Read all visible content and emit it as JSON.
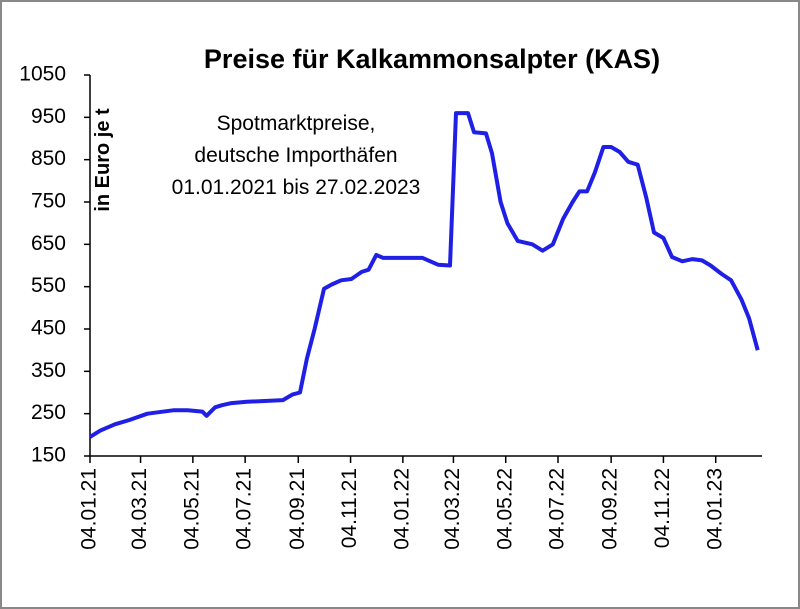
{
  "chart_data": {
    "type": "line",
    "title": "Preise für Kalkammonsalpter (KAS)",
    "subtitle": [
      "Spotmarktpreise,",
      "deutsche Importhäfen",
      "01.01.2021 bis 27.02.2023"
    ],
    "y_label": "in Euro je t",
    "grid": false,
    "xlim": [
      "2021-01-04",
      "2023-02-27"
    ],
    "xticks": [
      {
        "value": "2021-01-04",
        "label": "04.01.21"
      },
      {
        "value": "2021-03-04",
        "label": "04.03.21"
      },
      {
        "value": "2021-05-04",
        "label": "04.05.21"
      },
      {
        "value": "2021-07-04",
        "label": "04.07.21"
      },
      {
        "value": "2021-09-04",
        "label": "04.09.21"
      },
      {
        "value": "2021-11-04",
        "label": "04.11.21"
      },
      {
        "value": "2022-01-04",
        "label": "04.01.22"
      },
      {
        "value": "2022-03-04",
        "label": "04.03.22"
      },
      {
        "value": "2022-05-04",
        "label": "04.05.22"
      },
      {
        "value": "2022-07-04",
        "label": "04.07.22"
      },
      {
        "value": "2022-09-04",
        "label": "04.09.22"
      },
      {
        "value": "2022-11-04",
        "label": "04.11.22"
      },
      {
        "value": "2023-01-04",
        "label": "04.01.23"
      }
    ],
    "ylim": [
      150,
      1050
    ],
    "yticks": [
      150,
      250,
      350,
      450,
      550,
      650,
      750,
      850,
      950,
      1050
    ],
    "x": [
      "2021-01-04",
      "2021-01-16",
      "2021-02-02",
      "2021-02-19",
      "2021-03-12",
      "2021-04-11",
      "2021-04-28",
      "2021-05-15",
      "2021-05-20",
      "2021-05-30",
      "2021-06-07",
      "2021-06-18",
      "2021-07-06",
      "2021-08-17",
      "2021-08-28",
      "2021-09-06",
      "2021-09-14",
      "2021-09-23",
      "2021-10-04",
      "2021-10-13",
      "2021-10-24",
      "2021-11-05",
      "2021-11-17",
      "2021-11-25",
      "2021-12-04",
      "2021-12-12",
      "2022-01-27",
      "2022-02-14",
      "2022-02-28",
      "2022-03-07",
      "2022-03-21",
      "2022-03-28",
      "2022-04-11",
      "2022-04-18",
      "2022-04-28",
      "2022-05-06",
      "2022-05-18",
      "2022-06-04",
      "2022-06-16",
      "2022-06-28",
      "2022-07-10",
      "2022-07-21",
      "2022-07-29",
      "2022-08-07",
      "2022-08-16",
      "2022-08-26",
      "2022-09-04",
      "2022-09-14",
      "2022-09-24",
      "2022-10-05",
      "2022-10-15",
      "2022-10-24",
      "2022-11-04",
      "2022-11-14",
      "2022-11-26",
      "2022-12-08",
      "2022-12-19",
      "2022-12-29",
      "2023-01-11",
      "2023-01-22",
      "2023-02-03",
      "2023-02-12",
      "2023-02-22"
    ],
    "series": [
      {
        "name": "KAS",
        "color": "#1f1fe6",
        "values": [
          195,
          210,
          225,
          235,
          250,
          258,
          258,
          255,
          245,
          265,
          270,
          275,
          278,
          282,
          295,
          300,
          380,
          450,
          545,
          555,
          565,
          568,
          585,
          590,
          625,
          618,
          618,
          602,
          600,
          960,
          960,
          915,
          912,
          865,
          750,
          700,
          658,
          650,
          635,
          650,
          710,
          750,
          775,
          775,
          820,
          880,
          880,
          868,
          845,
          838,
          760,
          678,
          665,
          620,
          610,
          615,
          612,
          600,
          580,
          565,
          520,
          475,
          400
        ]
      }
    ]
  }
}
